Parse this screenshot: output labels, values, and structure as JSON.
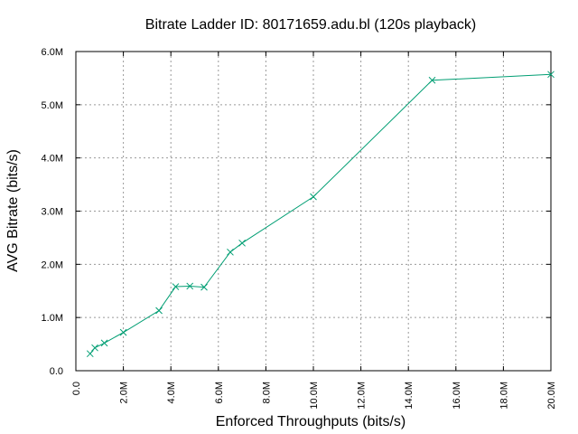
{
  "chart_data": {
    "type": "line",
    "title": "Bitrate Ladder ID: 80171659.adu.bl (120s playback)",
    "xlabel": "Enforced Throughputs (bits/s)",
    "ylabel": "AVG Bitrate (bits/s)",
    "xlim": [
      0,
      20000000
    ],
    "ylim": [
      0,
      6000000
    ],
    "x_ticks": [
      0,
      2000000,
      4000000,
      6000000,
      8000000,
      10000000,
      12000000,
      14000000,
      16000000,
      18000000,
      20000000
    ],
    "x_tick_labels": [
      "0.0",
      "2.0M",
      "4.0M",
      "6.0M",
      "8.0M",
      "10.0M",
      "12.0M",
      "14.0M",
      "16.0M",
      "18.0M",
      "20.0M"
    ],
    "y_ticks": [
      0,
      1000000,
      2000000,
      3000000,
      4000000,
      5000000,
      6000000
    ],
    "y_tick_labels": [
      "0.0",
      "1.0M",
      "2.0M",
      "3.0M",
      "4.0M",
      "5.0M",
      "6.0M"
    ],
    "grid": true,
    "legend": "none",
    "series": [
      {
        "color": "#009e73",
        "marker": "x",
        "x": [
          600000,
          800000,
          1200000,
          2000000,
          3500000,
          4200000,
          4800000,
          5400000,
          6500000,
          7000000,
          10000000,
          15000000,
          20000000
        ],
        "y": [
          320000,
          430000,
          520000,
          720000,
          1130000,
          1580000,
          1590000,
          1570000,
          2230000,
          2400000,
          3270000,
          5460000,
          5570000
        ]
      }
    ]
  }
}
